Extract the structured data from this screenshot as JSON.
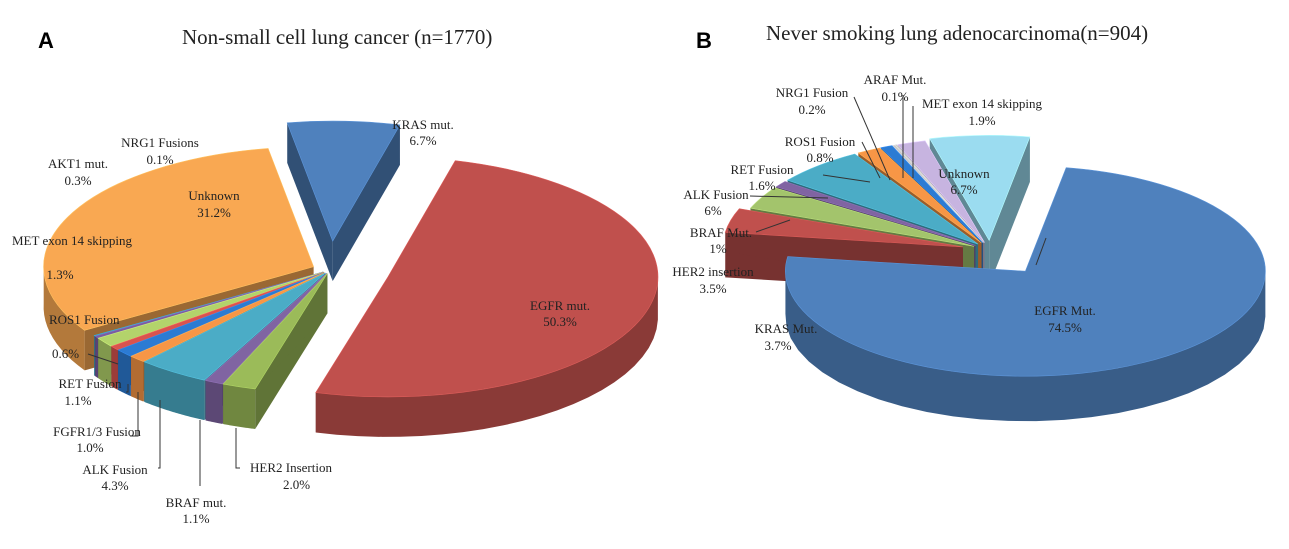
{
  "chart_data": [
    {
      "panel": "A",
      "type": "pie",
      "title": "Non-small cell lung cancer (n=1770)",
      "unit": "%",
      "slices": [
        {
          "label": "KRAS mut.",
          "value": 6.7,
          "text": "6.7%",
          "color": "#4f81bd"
        },
        {
          "label": "EGFR mut.",
          "value": 50.3,
          "text": "50.3%",
          "color": "#c0504d"
        },
        {
          "label": "HER2 Insertion",
          "value": 2.0,
          "text": "2.0%",
          "color": "#9bbb59"
        },
        {
          "label": "BRAF mut.",
          "value": 1.1,
          "text": "1.1%",
          "color": "#8064a2"
        },
        {
          "label": "ALK Fusion",
          "value": 4.3,
          "text": "4.3%",
          "color": "#4bacc6"
        },
        {
          "label": "FGFR1/3 Fusion",
          "value": 1.0,
          "text": "1.0%",
          "color": "#f79646"
        },
        {
          "label": "RET Fusion",
          "value": 1.1,
          "text": "1.1%",
          "color": "#2c7bd3"
        },
        {
          "label": "ROS1 Fusion",
          "value": 0.6,
          "text": "0.6%",
          "color": "#d9534f"
        },
        {
          "label": "MET exon 14 skipping",
          "value": 1.3,
          "text": "1.3%",
          "color": "#b3d36b"
        },
        {
          "label": "AKT1 mut.",
          "value": 0.3,
          "text": "0.3%",
          "color": "#7a5ca3"
        },
        {
          "label": "NRG1 Fusions",
          "value": 0.1,
          "text": "0.1%",
          "color": "#2f9fc0"
        },
        {
          "label": "Unknown",
          "value": 31.2,
          "text": "31.2%",
          "color": "#f9a852"
        }
      ]
    },
    {
      "panel": "B",
      "type": "pie",
      "title": "Never smoking lung adenocarcinoma(n=904)",
      "unit": "%",
      "slices": [
        {
          "label": "EGFR Mut.",
          "value": 74.5,
          "text": "74.5%",
          "color": "#4f81bd"
        },
        {
          "label": "KRAS Mut.",
          "value": 3.7,
          "text": "3.7%",
          "color": "#c0504d"
        },
        {
          "label": "HER2 insertion",
          "value": 3.5,
          "text": "3.5%",
          "color": "#a3c46c"
        },
        {
          "label": "BRAF Mut.",
          "value": 1.0,
          "text": "1%",
          "color": "#8064a2"
        },
        {
          "label": "ALK Fusion",
          "value": 6.0,
          "text": "6%",
          "color": "#4bacc6"
        },
        {
          "label": "RET Fusion",
          "value": 1.6,
          "text": "1.6%",
          "color": "#f79646"
        },
        {
          "label": "ROS1 Fusion",
          "value": 0.8,
          "text": "0.8%",
          "color": "#2c7bd3"
        },
        {
          "label": "NRG1 Fusion",
          "value": 0.2,
          "text": "0.2%",
          "color": "#c9c9c9"
        },
        {
          "label": "ARAF Mut.",
          "value": 0.1,
          "text": "0.1%",
          "color": "#bfbfbf"
        },
        {
          "label": "MET exon 14 skipping",
          "value": 1.9,
          "text": "1.9%",
          "color": "#c7b4e0"
        },
        {
          "label": "Unknown",
          "value": 6.7,
          "text": "6.7%",
          "color": "#9bdcf0"
        }
      ]
    }
  ]
}
